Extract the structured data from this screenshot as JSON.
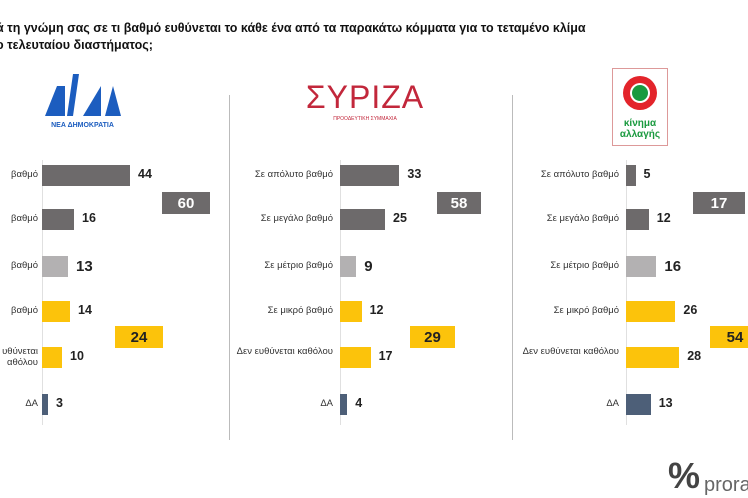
{
  "title_lines": [
    "ά τη γνώμη σας σε τι βαθμό ευθύνεται το κάθε ένα από τα παρακάτω κόμματα για το τεταμένο κλίμα",
    "ο τελευταίου διαστήματος;"
  ],
  "chart_data": {
    "type": "bar",
    "title": "Κατά τη γνώμη σας σε τι βαθμό ευθύνεται το κάθε ένα από τα παρακάτω κόμματα για το τεταμένο κλίμα του τελευταίου διαστήματος;",
    "categories": [
      "Σε απόλυτο βαθμό",
      "Σε μεγάλο βαθμό",
      "Σε μέτριο βαθμό",
      "Σε μικρό βαθμό",
      "Δεν ευθύνεται καθόλου",
      "ΔΑ"
    ],
    "colors": [
      "#6d6a6b",
      "#6d6a6b",
      "#b3b1b2",
      "#fcc30b",
      "#fcc30b",
      "#4d5f78"
    ],
    "series": [
      {
        "name": "ΝΕΑ ΔΗΜΟΚΡΑΤΙΑ",
        "values": [
          44,
          16,
          13,
          14,
          10,
          3
        ],
        "summary": [
          60,
          24
        ],
        "visible_labels": [
          "βαθμό",
          "βαθμό",
          "βαθμό",
          "βαθμό",
          "υθύνεται\nαθόλου",
          "ΔΑ"
        ]
      },
      {
        "name": "ΣΥΡΙΖΑ",
        "values": [
          33,
          25,
          9,
          12,
          17,
          4
        ],
        "summary": [
          58,
          29
        ]
      },
      {
        "name": "κίνημα αλλαγής",
        "values": [
          5,
          12,
          16,
          26,
          28,
          13
        ],
        "summary": [
          17,
          54
        ]
      }
    ],
    "summary_colors": [
      "#6d6a6b",
      "#fcc30b"
    ]
  },
  "logos": {
    "nd": "ΝΕΑ ΔΗΜΟΚΡΑΤΙΑ",
    "nd_mark": "ΝΔ",
    "syriza": "ΣΥΡΙΖΑ",
    "syriza_sub": "ΠΡΟΟΔΕΥΤΙΚΗ ΣΥΜΜΑΧΙΑ",
    "kinal": "κίνημα αλλαγής",
    "prorata": "prorata",
    "prorata_mark": "%"
  }
}
